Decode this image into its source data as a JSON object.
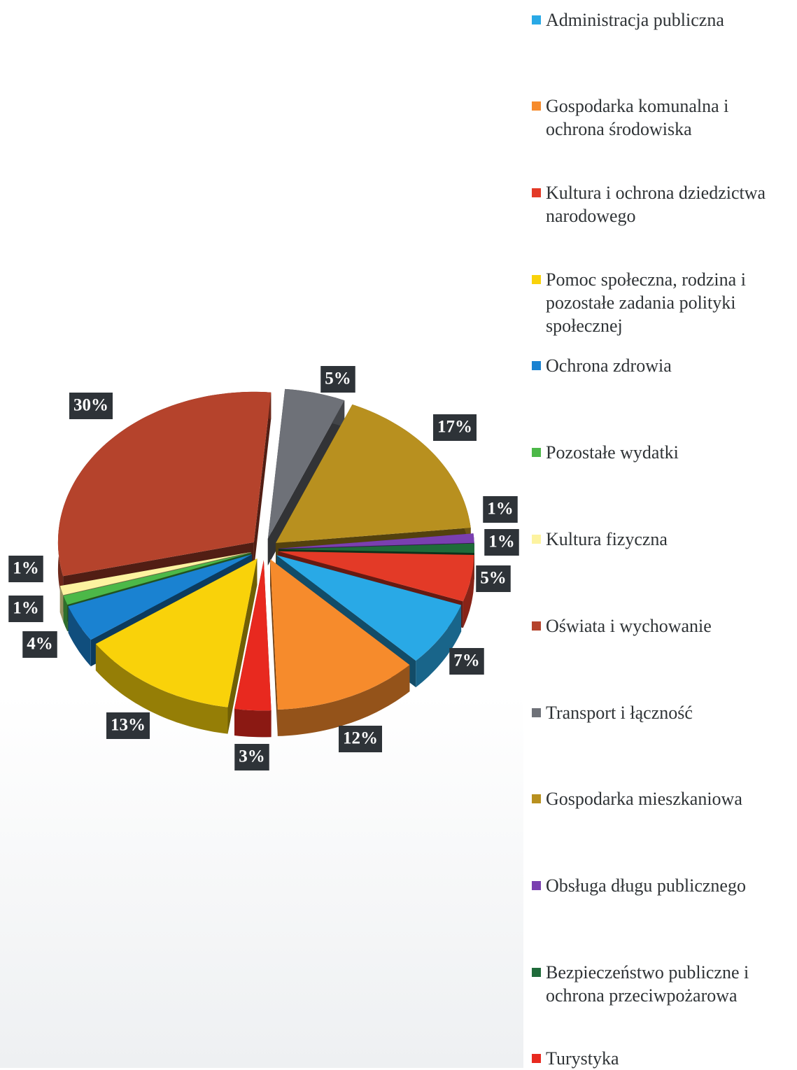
{
  "chart_data": {
    "type": "pie",
    "categories": [
      "Administracja publiczna",
      "Gospodarka komunalna i ochrona środowiska",
      "Kultura i ochrona dziedzictwa narodowego",
      "Pomoc społeczna, rodzina i pozostałe zadania polityki społecznej",
      "Ochrona zdrowia",
      "Pozostałe wydatki",
      "Kultura fizyczna",
      "Oświata i wychowanie",
      "Transport i łączność",
      "Gospodarka mieszkaniowa",
      "Obsługa długu publicznego",
      "Bezpieczeństwo publiczne i ochrona przeciwpożarowa",
      "Turystyka"
    ],
    "values": [
      7,
      12,
      5,
      13,
      4,
      1,
      1,
      30,
      5,
      17,
      1,
      1,
      3
    ],
    "value_labels": [
      "7%",
      "12%",
      "5%",
      "13%",
      "4%",
      "1%",
      "1%",
      "30%",
      "5%",
      "17%",
      "1%",
      "1%",
      "3%"
    ],
    "colors": [
      "#29a9e6",
      "#f68b2c",
      "#e33a27",
      "#f9d20a",
      "#1a82d1",
      "#4cb848",
      "#fdf3a0",
      "#b5432c",
      "#6e7178",
      "#b8901f",
      "#7a3fb0",
      "#1f6b3a",
      "#e8291f"
    ],
    "legend": "right"
  }
}
